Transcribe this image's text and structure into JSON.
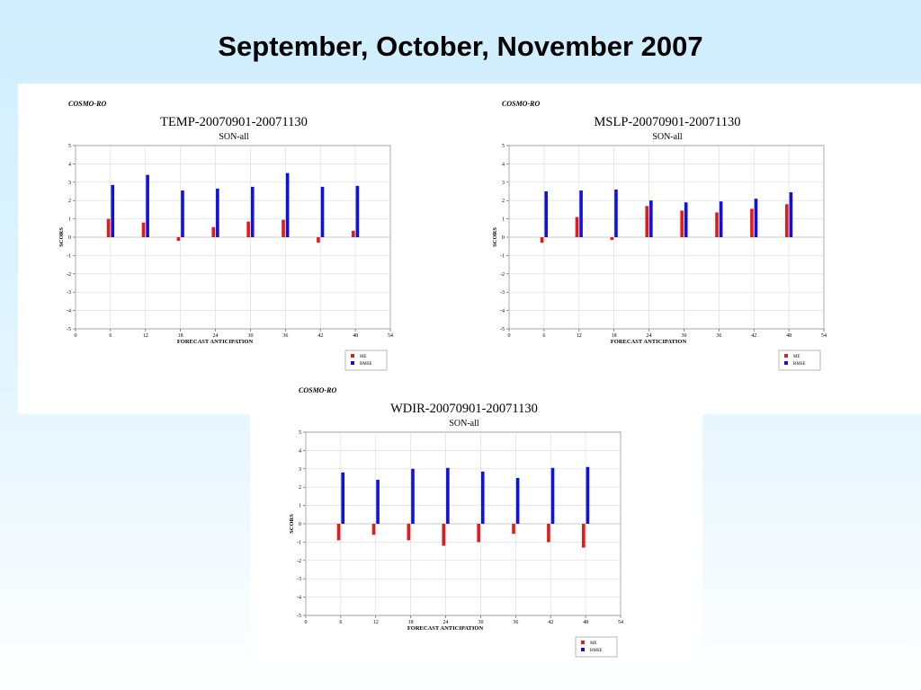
{
  "slide": {
    "title": "September, October, November  2007"
  },
  "chart_data": [
    {
      "type": "bar",
      "source": "COSMO-RO",
      "title": "TEMP-20070901-20071130",
      "subtitle": "SON-all",
      "xlabel": "FORECAST ANTICIPATION",
      "ylabel": "SCORS",
      "xlim": [
        0,
        54
      ],
      "ylim": [
        -5,
        5
      ],
      "xticks": [
        0,
        6,
        12,
        18,
        24,
        30,
        36,
        42,
        48,
        54
      ],
      "yticks": [
        5,
        4,
        3,
        2,
        1,
        0,
        -1,
        -2,
        -3,
        -4,
        -5
      ],
      "x": [
        6,
        12,
        18,
        24,
        30,
        36,
        42,
        48
      ],
      "grid": true,
      "legend_position": "bottom-right",
      "series": [
        {
          "name": "ME",
          "color": "#e31a1c",
          "values": [
            1.0,
            0.8,
            -0.2,
            0.55,
            0.85,
            0.95,
            -0.3,
            0.35
          ]
        },
        {
          "name": "RMSE",
          "color": "#1010e0",
          "values": [
            2.85,
            3.4,
            2.55,
            2.65,
            2.75,
            3.5,
            2.75,
            2.8
          ]
        }
      ]
    },
    {
      "type": "bar",
      "source": "COSMO-RO",
      "title": "MSLP-20070901-20071130",
      "subtitle": "SON-all",
      "xlabel": "FORECAST ANTICIPATION",
      "ylabel": "SCORS",
      "xlim": [
        0,
        54
      ],
      "ylim": [
        -5,
        5
      ],
      "xticks": [
        0,
        6,
        12,
        18,
        24,
        30,
        36,
        42,
        48,
        54
      ],
      "yticks": [
        5,
        4,
        3,
        2,
        1,
        0,
        -1,
        -2,
        -3,
        -4,
        -5
      ],
      "x": [
        6,
        12,
        18,
        24,
        30,
        36,
        42,
        48
      ],
      "grid": true,
      "legend_position": "bottom-right",
      "series": [
        {
          "name": "ME",
          "color": "#e31a1c",
          "values": [
            -0.3,
            1.1,
            -0.15,
            1.7,
            1.45,
            1.35,
            1.55,
            1.8
          ]
        },
        {
          "name": "RMSE",
          "color": "#1010e0",
          "values": [
            2.5,
            2.55,
            2.6,
            2.0,
            1.9,
            1.95,
            2.1,
            2.45
          ]
        }
      ]
    },
    {
      "type": "bar",
      "source": "COSMO-RO",
      "title": "WDIR-20070901-20071130",
      "subtitle": "SON-all",
      "xlabel": "FORECAST ANTICIPATION",
      "ylabel": "SCORS",
      "xlim": [
        0,
        54
      ],
      "ylim": [
        -5,
        5
      ],
      "xticks": [
        0,
        6,
        12,
        18,
        24,
        30,
        36,
        42,
        48,
        54
      ],
      "yticks": [
        5,
        4,
        3,
        2,
        1,
        0,
        -1,
        -2,
        -3,
        -4,
        -5
      ],
      "x": [
        6,
        12,
        18,
        24,
        30,
        36,
        42,
        48
      ],
      "grid": true,
      "legend_position": "bottom-right",
      "series": [
        {
          "name": "ME",
          "color": "#e31a1c",
          "values": [
            -0.9,
            -0.6,
            -0.9,
            -1.2,
            -1.0,
            -0.55,
            -1.0,
            -1.3
          ]
        },
        {
          "name": "RMSE",
          "color": "#1010e0",
          "values": [
            2.8,
            2.4,
            3.0,
            3.05,
            2.85,
            2.5,
            3.05,
            3.1
          ]
        }
      ]
    }
  ]
}
